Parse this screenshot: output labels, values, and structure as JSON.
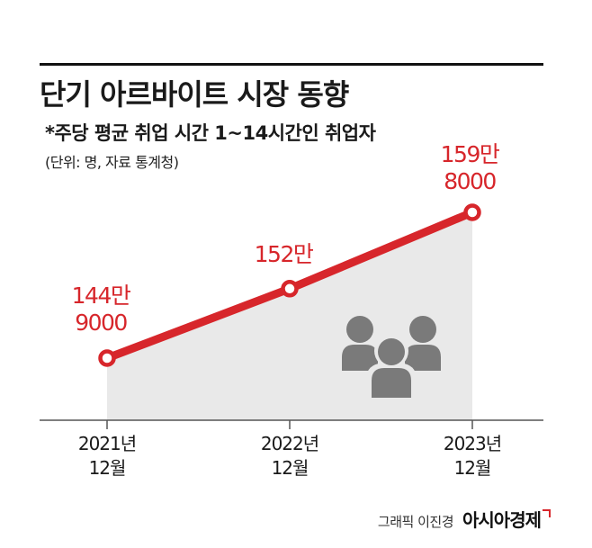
{
  "header": {
    "title": "단기 아르바이트 시장 동향",
    "subtitle": "*주당 평균 취업 시간 1~14시간인 취업자",
    "unit_note": "(단위: 명, 자료 통계청)"
  },
  "colors": {
    "accent": "#d7262b",
    "area": "#e9e9e9",
    "axis": "#555555",
    "icon": "#7a7a7a"
  },
  "chart_data": {
    "type": "area",
    "title": "단기 아르바이트 시장 동향",
    "categories": [
      [
        "2021년",
        "12월"
      ],
      [
        "2022년",
        "12월"
      ],
      [
        "2023년",
        "12월"
      ]
    ],
    "values": [
      1449000,
      1520000,
      1598000
    ],
    "data_labels": [
      [
        "144만",
        "9000"
      ],
      [
        "152만"
      ],
      [
        "159만",
        "8000"
      ]
    ],
    "xlabel": "",
    "ylabel": "",
    "grid": false,
    "legend": "none",
    "decoration_icon": "people-group-icon"
  },
  "credit": {
    "author": "그래픽 이진경",
    "brand": "아시아경제"
  }
}
